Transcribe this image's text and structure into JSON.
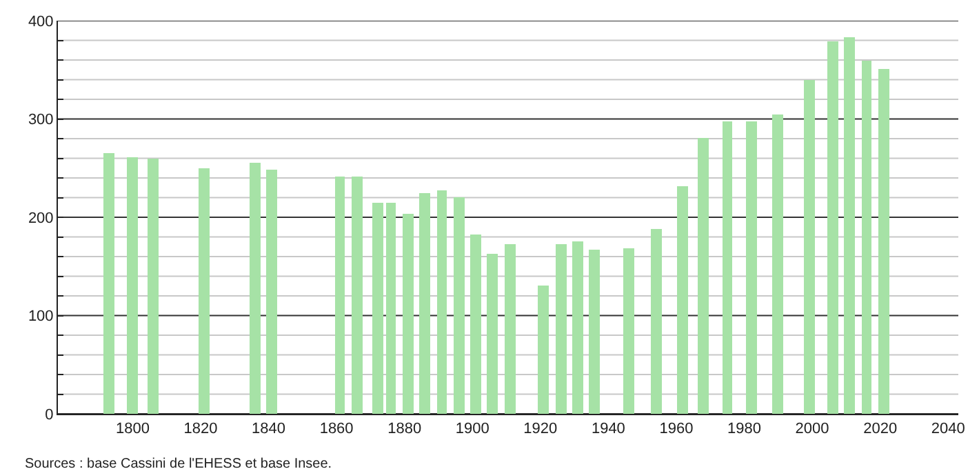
{
  "chart_data": {
    "type": "bar",
    "color": "#a6e2a6",
    "x": [
      1793,
      1800,
      1806,
      1821,
      1836,
      1841,
      1861,
      1866,
      1872,
      1876,
      1881,
      1886,
      1891,
      1896,
      1901,
      1906,
      1911,
      1921,
      1926,
      1931,
      1936,
      1946,
      1954,
      1962,
      1968,
      1975,
      1982,
      1990,
      1999,
      2006,
      2011,
      2016,
      2021
    ],
    "values": [
      265,
      261,
      259,
      250,
      256,
      249,
      242,
      242,
      215,
      215,
      204,
      224,
      228,
      220,
      182,
      163,
      173,
      131,
      172,
      175,
      167,
      168,
      188,
      231,
      281,
      297,
      297,
      304,
      340,
      379,
      383,
      360,
      351
    ],
    "xlim": [
      1778,
      2043
    ],
    "xticks": [
      1800,
      1820,
      1840,
      1860,
      1880,
      1900,
      1920,
      1940,
      1960,
      1980,
      2000,
      2020,
      2040
    ],
    "ylim": [
      0,
      400
    ],
    "yticks": [
      0,
      {
        "value": 20,
        "label": null
      },
      {
        "value": 40,
        "label": null
      },
      {
        "value": 60,
        "label": null
      },
      {
        "value": 80,
        "label": null
      },
      100,
      {
        "value": 120,
        "label": null
      },
      {
        "value": 140,
        "label": null
      },
      {
        "value": 160,
        "label": null
      },
      {
        "value": 180,
        "label": null
      },
      200,
      {
        "value": 220,
        "label": null
      },
      {
        "value": 240,
        "label": null
      },
      {
        "value": 260,
        "label": null
      },
      {
        "value": 280,
        "label": null
      },
      300,
      {
        "value": 320,
        "label": null
      },
      {
        "value": 340,
        "label": null
      },
      {
        "value": 360,
        "label": null
      },
      {
        "value": 380,
        "label": null
      },
      400
    ],
    "grid": "y",
    "annotations": [
      "Sources : base Cassini de l'EHESS et base Insee."
    ]
  }
}
